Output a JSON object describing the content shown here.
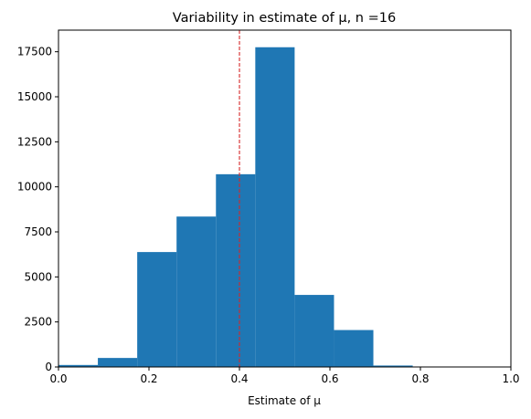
{
  "chart_data": {
    "type": "bar",
    "title": "Variability in estimate of μ, n =16",
    "xlabel": "Estimate of μ",
    "ylabel": "",
    "xlim": [
      0.0,
      1.0
    ],
    "ylim": [
      0,
      18700
    ],
    "bin_edges": [
      0.0,
      0.087,
      0.174,
      0.261,
      0.348,
      0.435,
      0.522,
      0.609,
      0.696,
      0.783,
      0.87
    ],
    "values": [
      110,
      500,
      6380,
      8350,
      10700,
      17750,
      4000,
      2050,
      80,
      20
    ],
    "bar_color": "#1f77b4",
    "reference_line": {
      "x": 0.4,
      "color": "#d62728",
      "style": "dashed"
    },
    "xticks": [
      "0.0",
      "0.2",
      "0.4",
      "0.6",
      "0.8",
      "1.0"
    ],
    "yticks": [
      "0",
      "2500",
      "5000",
      "7500",
      "10000",
      "12500",
      "15000",
      "17500"
    ],
    "grid": false,
    "legend": "none"
  }
}
